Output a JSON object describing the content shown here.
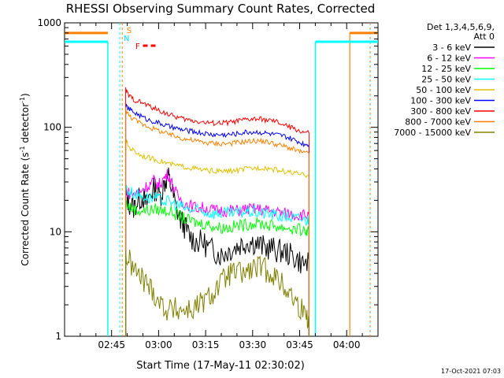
{
  "chart_data": {
    "type": "line",
    "title": "RHESSI Observing Summary Count Rates, Corrected",
    "xlabel": "Start Time (17-May-11 02:30:02)",
    "ylabel_main": "Corrected Count Rate (s",
    "ylabel_sup1": "-1",
    "ylabel_mid": " detector",
    "ylabel_sup2": "-1",
    "ylabel_end": ")",
    "y_scale": "log",
    "ylim": [
      1,
      1000
    ],
    "xlim_minutes": [
      0,
      100
    ],
    "x_ticks": [
      {
        "minute": 15,
        "label": "02:45"
      },
      {
        "minute": 30,
        "label": "03:00"
      },
      {
        "minute": 45,
        "label": "03:15"
      },
      {
        "minute": 60,
        "label": "03:30"
      },
      {
        "minute": 75,
        "label": "03:45"
      },
      {
        "minute": 90,
        "label": "04:00"
      }
    ],
    "y_ticks": [
      {
        "value": 1,
        "label": "1"
      },
      {
        "value": 10,
        "label": "10"
      },
      {
        "value": 100,
        "label": "100"
      },
      {
        "value": 1000,
        "label": "1000"
      }
    ],
    "legend_title_1": "Det 1,3,4,5,6,9,",
    "legend_title_2": "Att 0",
    "legend_position": "top-right",
    "timestamp": "17-Oct-2021 07:03",
    "flags": [
      {
        "label": "S",
        "color": "#ff8000"
      },
      {
        "label": "N",
        "color": "#00e0ff"
      },
      {
        "label": "F",
        "color": "#ff0000"
      }
    ],
    "series": [
      {
        "name": "3 - 6 keV",
        "color": "#000000",
        "points": [
          [
            19.5,
            22
          ],
          [
            20.5,
            19
          ],
          [
            22,
            17
          ],
          [
            23.5,
            20
          ],
          [
            25,
            22
          ],
          [
            26,
            18
          ],
          [
            27.5,
            24
          ],
          [
            29,
            26
          ],
          [
            30.5,
            22
          ],
          [
            32,
            30
          ],
          [
            33,
            34
          ],
          [
            34,
            27
          ],
          [
            35.5,
            17
          ],
          [
            37,
            13
          ],
          [
            38.5,
            11
          ],
          [
            40,
            9
          ],
          [
            42,
            8
          ],
          [
            44,
            8
          ],
          [
            46,
            7
          ],
          [
            48,
            6.5
          ],
          [
            50,
            6
          ],
          [
            52,
            6.5
          ],
          [
            54,
            7
          ],
          [
            56,
            7.5
          ],
          [
            58,
            8
          ],
          [
            60,
            8
          ],
          [
            62,
            7.5
          ],
          [
            64,
            7
          ],
          [
            66,
            7
          ],
          [
            68,
            6.5
          ],
          [
            70,
            6.5
          ],
          [
            72,
            6
          ],
          [
            74,
            5.5
          ],
          [
            76,
            5
          ],
          [
            78,
            5
          ]
        ]
      },
      {
        "name": "6 - 12 keV",
        "color": "#ff00ff",
        "points": [
          [
            19.5,
            25
          ],
          [
            21,
            23
          ],
          [
            23,
            23
          ],
          [
            25,
            26
          ],
          [
            27,
            28
          ],
          [
            28.5,
            31
          ],
          [
            30,
            28
          ],
          [
            31.5,
            32
          ],
          [
            33,
            36
          ],
          [
            34.5,
            28
          ],
          [
            36,
            22
          ],
          [
            38,
            19
          ],
          [
            40,
            18
          ],
          [
            42,
            17
          ],
          [
            44,
            17
          ],
          [
            46,
            16.5
          ],
          [
            48,
            16
          ],
          [
            50,
            16
          ],
          [
            52,
            16
          ],
          [
            54,
            16
          ],
          [
            56,
            16
          ],
          [
            58,
            16.5
          ],
          [
            60,
            16.5
          ],
          [
            62,
            16.5
          ],
          [
            64,
            16
          ],
          [
            66,
            16
          ],
          [
            68,
            15.5
          ],
          [
            70,
            15
          ],
          [
            72,
            15
          ],
          [
            74,
            14.5
          ],
          [
            76,
            14.5
          ],
          [
            78,
            14.5
          ]
        ]
      },
      {
        "name": "12 - 25 keV",
        "color": "#00ff00",
        "points": [
          [
            19.5,
            19
          ],
          [
            21,
            17
          ],
          [
            23,
            16
          ],
          [
            25,
            16
          ],
          [
            27,
            16
          ],
          [
            29,
            16.5
          ],
          [
            31,
            16
          ],
          [
            33,
            16
          ],
          [
            35,
            15
          ],
          [
            37,
            14
          ],
          [
            39,
            13
          ],
          [
            41,
            12.5
          ],
          [
            43,
            12
          ],
          [
            45,
            12
          ],
          [
            47,
            11.5
          ],
          [
            49,
            11
          ],
          [
            51,
            11
          ],
          [
            53,
            11
          ],
          [
            55,
            11.5
          ],
          [
            57,
            11.5
          ],
          [
            59,
            12
          ],
          [
            61,
            12
          ],
          [
            63,
            12
          ],
          [
            65,
            11.5
          ],
          [
            67,
            11.5
          ],
          [
            69,
            11
          ],
          [
            71,
            11
          ],
          [
            73,
            10.5
          ],
          [
            75,
            10.5
          ],
          [
            77,
            10
          ],
          [
            78,
            10
          ]
        ]
      },
      {
        "name": "25 - 50 keV",
        "color": "#00ffff",
        "points": [
          [
            19.5,
            26
          ],
          [
            21,
            24
          ],
          [
            23,
            23
          ],
          [
            25,
            22
          ],
          [
            27,
            21
          ],
          [
            29,
            21
          ],
          [
            31,
            20
          ],
          [
            33,
            19.5
          ],
          [
            35,
            18.5
          ],
          [
            37,
            17.5
          ],
          [
            39,
            16.5
          ],
          [
            41,
            16
          ],
          [
            43,
            16
          ],
          [
            45,
            15.5
          ],
          [
            47,
            15
          ],
          [
            49,
            15
          ],
          [
            51,
            15
          ],
          [
            53,
            15
          ],
          [
            55,
            15
          ],
          [
            57,
            15.5
          ],
          [
            59,
            15.5
          ],
          [
            61,
            15.5
          ],
          [
            63,
            15
          ],
          [
            65,
            15
          ],
          [
            67,
            14.5
          ],
          [
            69,
            14
          ],
          [
            71,
            14
          ],
          [
            73,
            13.5
          ],
          [
            75,
            13.5
          ],
          [
            77,
            13
          ],
          [
            78,
            13
          ]
        ]
      },
      {
        "name": "50 - 100 keV",
        "color": "#e0c000",
        "points": [
          [
            19.5,
            75
          ],
          [
            20.5,
            65
          ],
          [
            22,
            60
          ],
          [
            24,
            55
          ],
          [
            26,
            52
          ],
          [
            28,
            50
          ],
          [
            30,
            48
          ],
          [
            32,
            46
          ],
          [
            34,
            44
          ],
          [
            36,
            43
          ],
          [
            38,
            42
          ],
          [
            40,
            41
          ],
          [
            42,
            40
          ],
          [
            44,
            39
          ],
          [
            46,
            38.5
          ],
          [
            48,
            38
          ],
          [
            50,
            38
          ],
          [
            52,
            38
          ],
          [
            54,
            38.5
          ],
          [
            56,
            39
          ],
          [
            58,
            40
          ],
          [
            60,
            40.5
          ],
          [
            62,
            41
          ],
          [
            64,
            41
          ],
          [
            66,
            40
          ],
          [
            68,
            39
          ],
          [
            70,
            38
          ],
          [
            72,
            37
          ],
          [
            74,
            36
          ],
          [
            76,
            35
          ],
          [
            78,
            35
          ]
        ]
      },
      {
        "name": "100 - 300 keV",
        "color": "#0000ff",
        "points": [
          [
            19.5,
            160
          ],
          [
            20.5,
            150
          ],
          [
            22,
            140
          ],
          [
            24,
            130
          ],
          [
            26,
            120
          ],
          [
            28,
            115
          ],
          [
            30,
            110
          ],
          [
            32,
            105
          ],
          [
            34,
            100
          ],
          [
            36,
            97
          ],
          [
            38,
            94
          ],
          [
            40,
            92
          ],
          [
            42,
            90
          ],
          [
            44,
            88
          ],
          [
            46,
            86
          ],
          [
            48,
            85
          ],
          [
            50,
            85
          ],
          [
            52,
            85
          ],
          [
            54,
            86
          ],
          [
            56,
            88
          ],
          [
            58,
            90
          ],
          [
            60,
            90
          ],
          [
            62,
            90
          ],
          [
            64,
            88
          ],
          [
            66,
            86
          ],
          [
            68,
            84
          ],
          [
            70,
            82
          ],
          [
            72,
            78
          ],
          [
            74,
            74
          ],
          [
            76,
            70
          ],
          [
            78,
            68
          ]
        ]
      },
      {
        "name": "300 - 800 keV",
        "color": "#ff0000",
        "points": [
          [
            19.5,
            230
          ],
          [
            20.5,
            200
          ],
          [
            22,
            185
          ],
          [
            24,
            175
          ],
          [
            26,
            165
          ],
          [
            28,
            155
          ],
          [
            30,
            145
          ],
          [
            32,
            138
          ],
          [
            34,
            130
          ],
          [
            36,
            125
          ],
          [
            38,
            120
          ],
          [
            40,
            117
          ],
          [
            42,
            115
          ],
          [
            44,
            112
          ],
          [
            46,
            110
          ],
          [
            48,
            110
          ],
          [
            50,
            110
          ],
          [
            52,
            111
          ],
          [
            54,
            113
          ],
          [
            56,
            116
          ],
          [
            58,
            118
          ],
          [
            60,
            120
          ],
          [
            62,
            120
          ],
          [
            64,
            118
          ],
          [
            66,
            115
          ],
          [
            68,
            112
          ],
          [
            70,
            105
          ],
          [
            72,
            100
          ],
          [
            74,
            95
          ],
          [
            76,
            90
          ],
          [
            78,
            88
          ]
        ]
      },
      {
        "name": "800 - 7000 keV",
        "color": "#ff8000",
        "points": [
          [
            19.5,
            150
          ],
          [
            20.5,
            130
          ],
          [
            22,
            120
          ],
          [
            24,
            110
          ],
          [
            26,
            104
          ],
          [
            28,
            98
          ],
          [
            30,
            93
          ],
          [
            32,
            88
          ],
          [
            34,
            84
          ],
          [
            36,
            81
          ],
          [
            38,
            78
          ],
          [
            40,
            76
          ],
          [
            42,
            74
          ],
          [
            44,
            72
          ],
          [
            46,
            71
          ],
          [
            48,
            70
          ],
          [
            50,
            70
          ],
          [
            52,
            70
          ],
          [
            54,
            71
          ],
          [
            56,
            72
          ],
          [
            58,
            73
          ],
          [
            60,
            74
          ],
          [
            62,
            74
          ],
          [
            64,
            73
          ],
          [
            66,
            71
          ],
          [
            68,
            68
          ],
          [
            70,
            66
          ],
          [
            72,
            63
          ],
          [
            74,
            60
          ],
          [
            76,
            57
          ],
          [
            78,
            56
          ]
        ]
      },
      {
        "name": "7000 - 15000 keV",
        "color": "#808000",
        "points": [
          [
            19.5,
            6
          ],
          [
            21,
            5
          ],
          [
            23,
            4
          ],
          [
            25,
            3.5
          ],
          [
            27,
            3
          ],
          [
            29,
            2.5
          ],
          [
            31,
            2
          ],
          [
            33,
            1.8
          ],
          [
            35,
            1.8
          ],
          [
            37,
            1.8
          ],
          [
            39,
            1.8
          ],
          [
            41,
            1.8
          ],
          [
            43,
            2
          ],
          [
            45,
            2.2
          ],
          [
            47,
            2.5
          ],
          [
            49,
            3
          ],
          [
            51,
            3.5
          ],
          [
            53,
            4
          ],
          [
            55,
            4
          ],
          [
            57,
            4
          ],
          [
            59,
            4.2
          ],
          [
            61,
            4.5
          ],
          [
            63,
            4.5
          ],
          [
            65,
            4.2
          ],
          [
            67,
            3.8
          ],
          [
            69,
            3.2
          ],
          [
            71,
            2.8
          ],
          [
            73,
            2.3
          ],
          [
            75,
            1.9
          ],
          [
            77,
            1.6
          ],
          [
            78,
            1.5
          ]
        ]
      }
    ],
    "attenuator_levels": [
      {
        "name": "orange",
        "color": "#ff8000",
        "segments": [
          [
            0,
            13.8,
            800
          ],
          [
            91,
            100,
            800
          ]
        ]
      },
      {
        "name": "cyan",
        "color": "#00ffff",
        "segments": [
          [
            0,
            13.8,
            660
          ],
          [
            80,
            100,
            660
          ]
        ]
      }
    ]
  }
}
